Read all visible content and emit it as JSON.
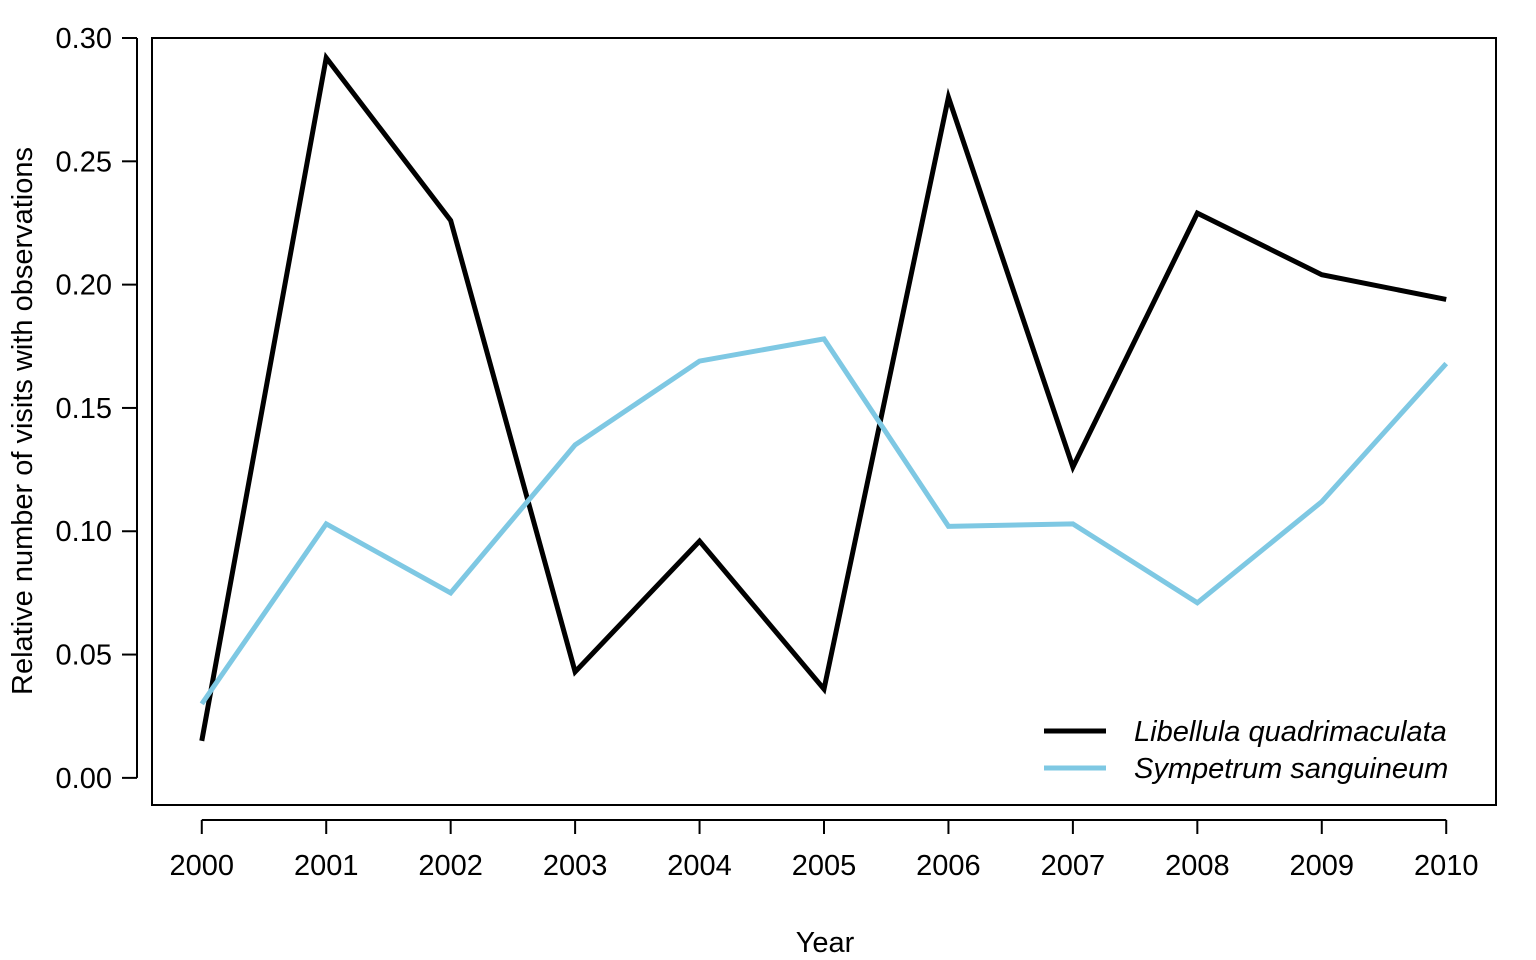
{
  "chart_data": {
    "type": "line",
    "xlabel": "Year",
    "ylabel": "Relative number of visits with observations",
    "x": [
      2000,
      2001,
      2002,
      2003,
      2004,
      2005,
      2006,
      2007,
      2008,
      2009,
      2010
    ],
    "x_tick_labels": [
      "2000",
      "2001",
      "2002",
      "2003",
      "2004",
      "2005",
      "2006",
      "2007",
      "2008",
      "2009",
      "2010"
    ],
    "y_tick_values": [
      0.0,
      0.05,
      0.1,
      0.15,
      0.2,
      0.25,
      0.3
    ],
    "y_tick_labels": [
      "0.00",
      "0.05",
      "0.10",
      "0.15",
      "0.20",
      "0.25",
      "0.30"
    ],
    "xlim": [
      1999.6,
      2010.4
    ],
    "ylim": [
      -0.011,
      0.3
    ],
    "grid": false,
    "legend_position": "bottom-right",
    "series": [
      {
        "name": "Libellula quadrimaculata",
        "color": "#000000",
        "values": [
          0.015,
          0.292,
          0.226,
          0.043,
          0.096,
          0.036,
          0.276,
          0.126,
          0.229,
          0.204,
          0.194
        ]
      },
      {
        "name": "Sympetrum sanguineum",
        "color": "#7ec8e3",
        "values": [
          0.03,
          0.103,
          0.075,
          0.135,
          0.169,
          0.178,
          0.102,
          0.103,
          0.071,
          0.112,
          0.168
        ]
      }
    ]
  }
}
